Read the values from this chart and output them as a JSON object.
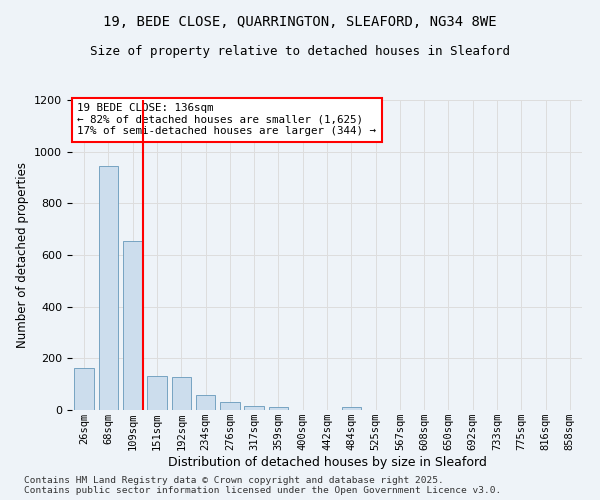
{
  "title_line1": "19, BEDE CLOSE, QUARRINGTON, SLEAFORD, NG34 8WE",
  "title_line2": "Size of property relative to detached houses in Sleaford",
  "xlabel": "Distribution of detached houses by size in Sleaford",
  "ylabel": "Number of detached properties",
  "categories": [
    "26sqm",
    "68sqm",
    "109sqm",
    "151sqm",
    "192sqm",
    "234sqm",
    "276sqm",
    "317sqm",
    "359sqm",
    "400sqm",
    "442sqm",
    "484sqm",
    "525sqm",
    "567sqm",
    "608sqm",
    "650sqm",
    "692sqm",
    "733sqm",
    "775sqm",
    "816sqm",
    "858sqm"
  ],
  "values": [
    163,
    945,
    655,
    130,
    128,
    57,
    30,
    14,
    10,
    0,
    0,
    13,
    0,
    0,
    0,
    0,
    0,
    0,
    0,
    0,
    0
  ],
  "bar_color": "#ccdded",
  "bar_edge_color": "#6699bb",
  "grid_color": "#dddddd",
  "background_color": "#eef3f8",
  "vline_x_index": 2.42,
  "vline_color": "red",
  "annotation_text": "19 BEDE CLOSE: 136sqm\n← 82% of detached houses are smaller (1,625)\n17% of semi-detached houses are larger (344) →",
  "annotation_box_facecolor": "white",
  "annotation_box_edgecolor": "red",
  "ylim": [
    0,
    1200
  ],
  "yticks": [
    0,
    200,
    400,
    600,
    800,
    1000,
    1200
  ],
  "footer": "Contains HM Land Registry data © Crown copyright and database right 2025.\nContains public sector information licensed under the Open Government Licence v3.0."
}
